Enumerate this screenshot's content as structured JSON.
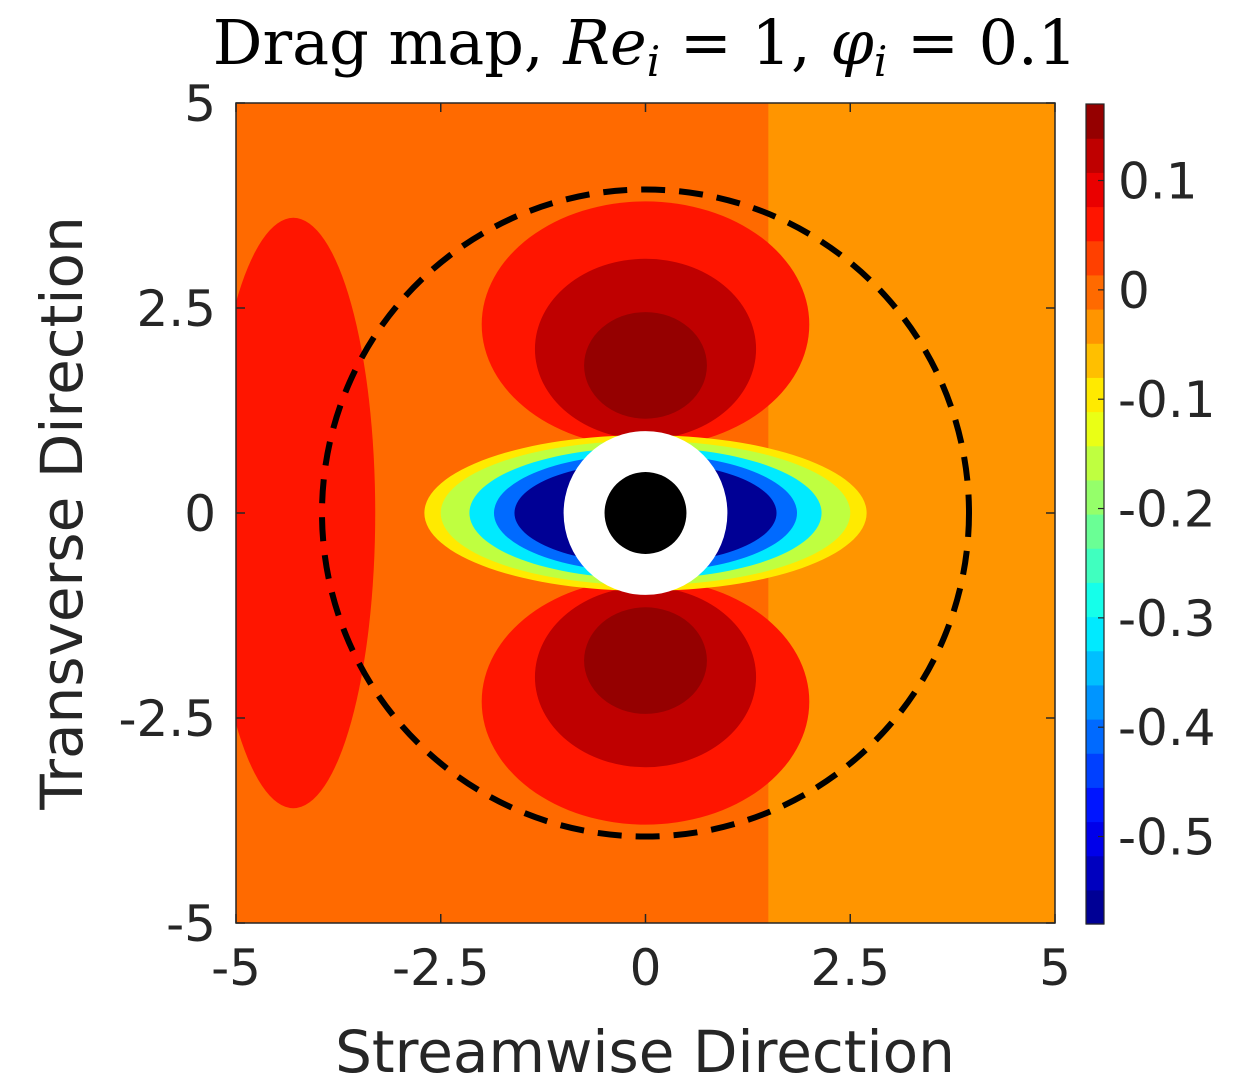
{
  "chart_data": {
    "type": "heatmap",
    "subtype": "filled-contour",
    "title": {
      "prefix": "Drag map, ",
      "re_symbol": "Re",
      "re_sub": "i",
      "re_value": " = 1, ",
      "phi_symbol": "φ",
      "phi_sub": "i",
      "phi_value": " = 0.1"
    },
    "xlabel": "Streamwise Direction",
    "ylabel": "Transverse Direction",
    "xlim": [
      -5,
      5
    ],
    "ylim": [
      -5,
      5
    ],
    "x_ticks": [
      -5,
      -2.5,
      0,
      2.5,
      5
    ],
    "x_tick_labels": [
      "-5",
      "-2.5",
      "0",
      "2.5",
      "5"
    ],
    "y_ticks": [
      -5,
      -2.5,
      0,
      2.5,
      5
    ],
    "y_tick_labels": [
      "-5",
      "-2.5",
      "0",
      "2.5",
      "5"
    ],
    "colorbar": {
      "range": [
        -0.58,
        0.17
      ],
      "ticks": [
        0.1,
        0,
        -0.1,
        -0.2,
        -0.3,
        -0.4,
        -0.5
      ],
      "tick_labels": [
        "0.1",
        "0",
        "-0.1",
        "-0.2",
        "-0.3",
        "-0.4",
        "-0.5"
      ],
      "levels": 24,
      "colormap": "jet"
    },
    "background_value": 0.0,
    "regions": [
      {
        "name": "left-wake-band",
        "cx": -4.3,
        "cy": 0,
        "rx": 1.0,
        "ry": 3.6,
        "value": 0.05
      },
      {
        "name": "upper-lobe-outer",
        "cx": 0,
        "cy": 2.3,
        "rx": 2.0,
        "ry": 1.5,
        "value": 0.07
      },
      {
        "name": "upper-lobe-mid",
        "cx": 0,
        "cy": 2.0,
        "rx": 1.35,
        "ry": 1.1,
        "value": 0.11
      },
      {
        "name": "upper-lobe-core",
        "cx": 0,
        "cy": 1.8,
        "rx": 0.75,
        "ry": 0.65,
        "value": 0.15
      },
      {
        "name": "lower-lobe-outer",
        "cx": 0,
        "cy": -2.3,
        "rx": 2.0,
        "ry": 1.5,
        "value": 0.07
      },
      {
        "name": "lower-lobe-mid",
        "cx": 0,
        "cy": -2.0,
        "rx": 1.35,
        "ry": 1.1,
        "value": 0.11
      },
      {
        "name": "lower-lobe-core",
        "cx": 0,
        "cy": -1.8,
        "rx": 0.75,
        "ry": 0.65,
        "value": 0.15
      },
      {
        "name": "side-yellow",
        "cx": 0,
        "cy": 0,
        "rx": 2.7,
        "ry": 0.95,
        "value": -0.1
      },
      {
        "name": "side-yellow-green",
        "cx": 0,
        "cy": 0,
        "rx": 2.5,
        "ry": 0.88,
        "value": -0.15
      },
      {
        "name": "side-cyan",
        "cx": 0,
        "cy": 0,
        "rx": 2.15,
        "ry": 0.8,
        "value": -0.3
      },
      {
        "name": "side-light-blue",
        "cx": 0,
        "cy": 0,
        "rx": 1.85,
        "ry": 0.72,
        "value": -0.4
      },
      {
        "name": "side-dark-blue",
        "cx": 0,
        "cy": 0,
        "rx": 1.6,
        "ry": 0.62,
        "value": -0.55
      }
    ],
    "annotations": {
      "excluded_radius": 1.0,
      "particle_radius": 0.5,
      "dashed_circle_radius": 3.95
    }
  }
}
